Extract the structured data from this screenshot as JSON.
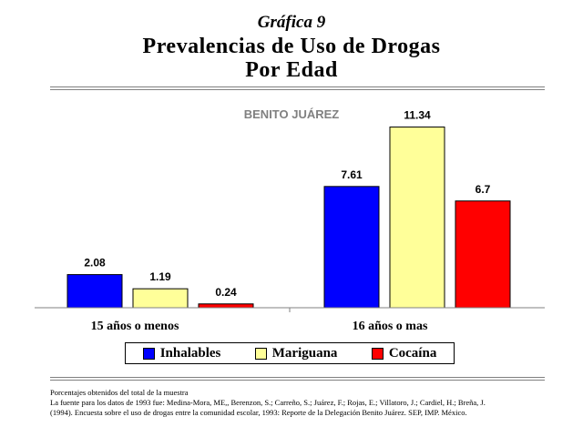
{
  "header": {
    "kicker": "Gráfica 9",
    "title_line1": "Prevalencias de Uso de Drogas",
    "title_line2": "Por Edad"
  },
  "colors": {
    "inhalables": "#0000ff",
    "mariguana": "#ffff99",
    "cocaina": "#ff0000",
    "subtitle": "#808080"
  },
  "chart_data": {
    "type": "bar",
    "title": "BENITO JUÁREZ",
    "categories": [
      "15 años o menos",
      "16 años o mas"
    ],
    "series": [
      {
        "name": "Inhalables",
        "values": [
          2.08,
          7.61
        ]
      },
      {
        "name": "Mariguana",
        "values": [
          1.19,
          11.34
        ]
      },
      {
        "name": "Cocaína",
        "values": [
          0.24,
          6.7
        ]
      }
    ],
    "value_labels": [
      [
        "2.08",
        "7.61"
      ],
      [
        "1.19",
        "11.34"
      ],
      [
        "0.24",
        "6.7"
      ]
    ],
    "ylim": [
      0,
      12
    ],
    "xlabel": "",
    "ylabel": "",
    "grid": false,
    "legend": "bottom"
  },
  "footer": {
    "line1": "Porcentajes obtenidos del total de la muestra",
    "line2": "La fuente para los datos de 1993 fue: Medina-Mora, ME,, Berenzon, S.; Carreño, S.; Juárez, F.; Rojas, E.; Villatoro, J.; Cardiel, H.; Breña, J.",
    "line3": "(1994). Encuesta sobre el uso de drogas entre la comunidad escolar, 1993: Reporte de la Delegación Benito Juárez. SEP, IMP. México."
  }
}
